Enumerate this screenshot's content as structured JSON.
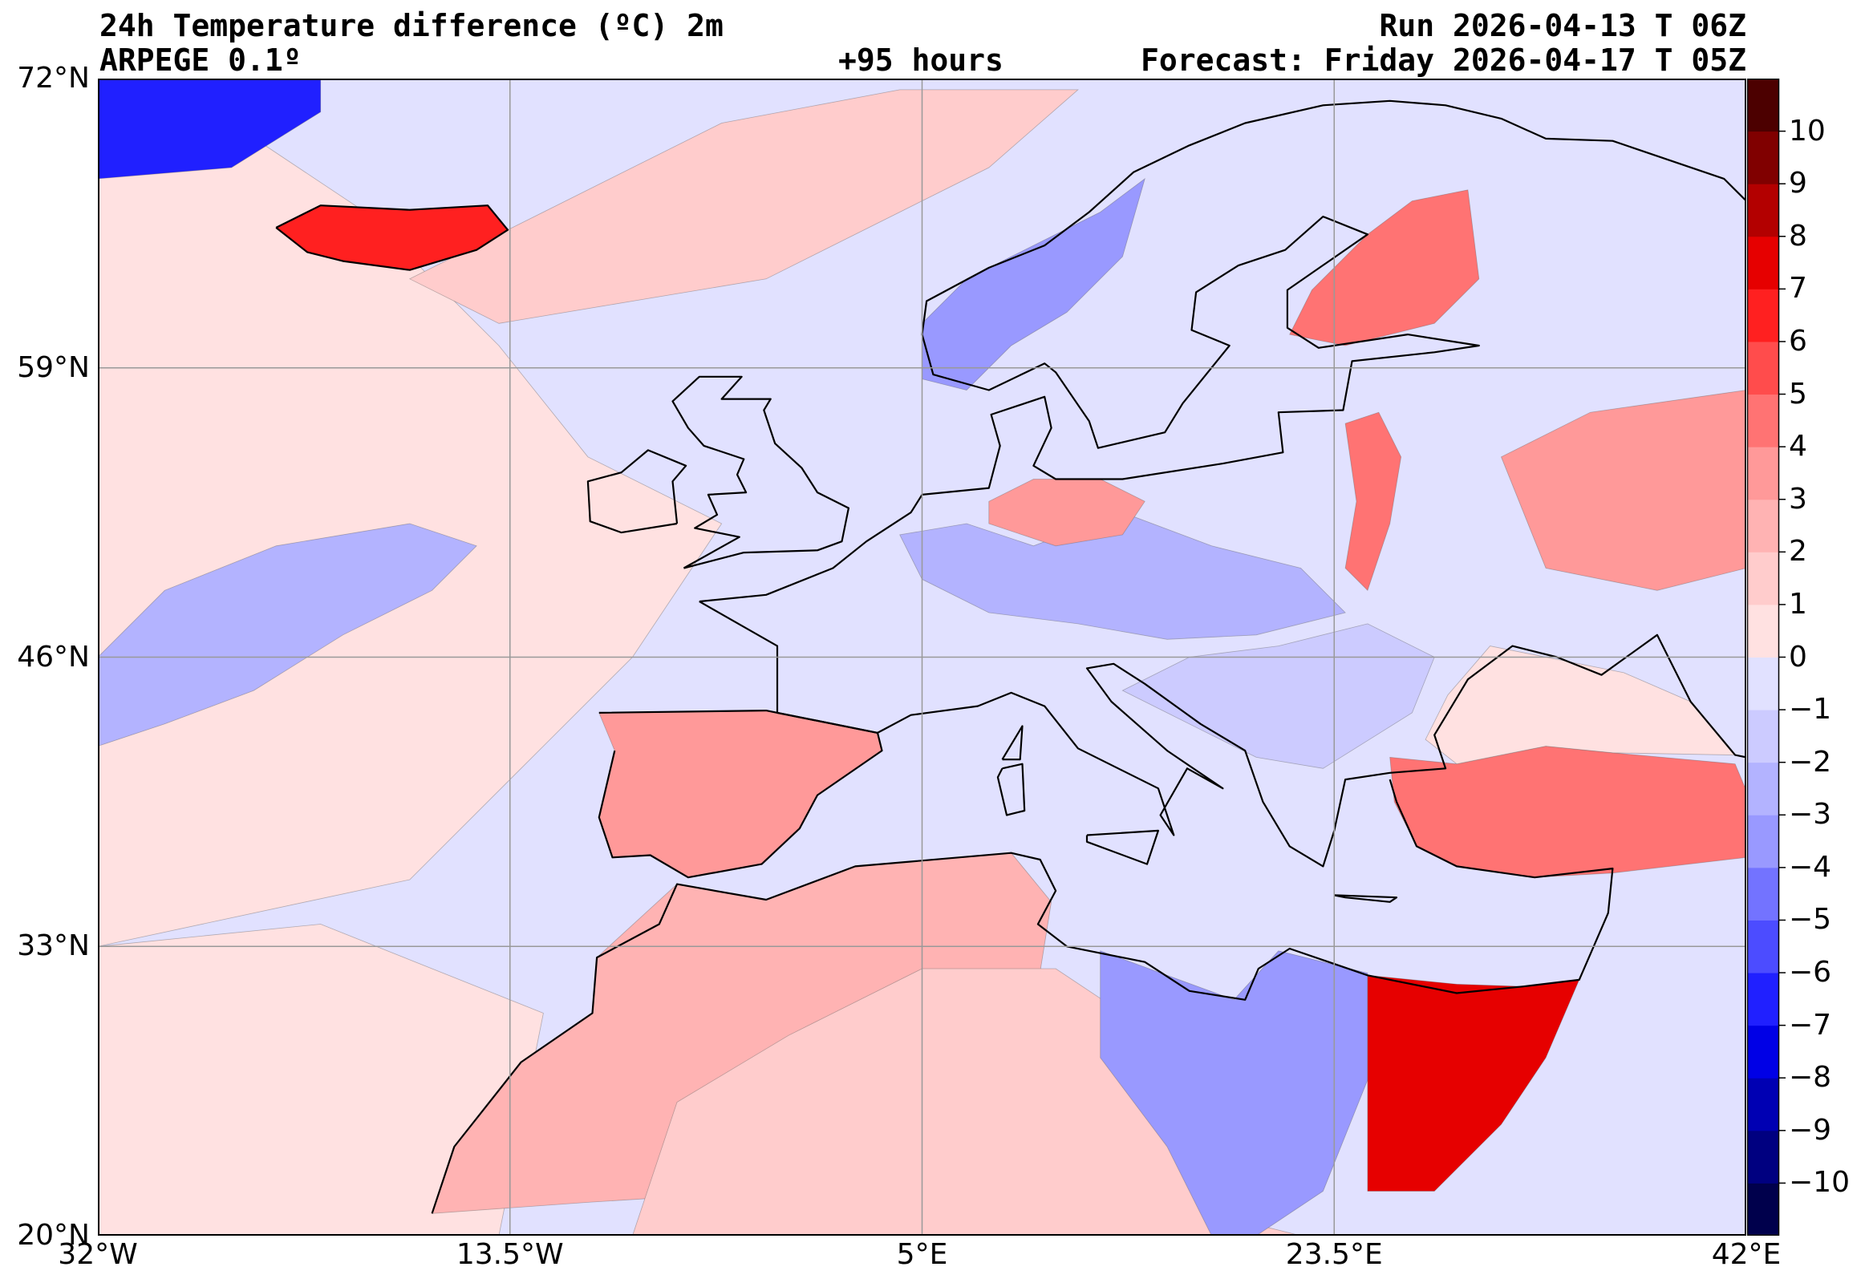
{
  "header": {
    "title_left_1": "24h Temperature difference (ºC) 2m",
    "title_left_2": "ARPEGE 0.1º",
    "lead_time": "+95 hours",
    "run": "Run 2026-04-13 T 06Z",
    "forecast": "Forecast: Friday 2026-04-17 T 05Z"
  },
  "map": {
    "lat_range": [
      20,
      72
    ],
    "lon_range": [
      -32,
      42
    ],
    "lat_ticks": [
      {
        "value": 72,
        "label": "72°N"
      },
      {
        "value": 59,
        "label": "59°N"
      },
      {
        "value": 46,
        "label": "46°N"
      },
      {
        "value": 33,
        "label": "33°N"
      },
      {
        "value": 20,
        "label": "20°N"
      }
    ],
    "lon_ticks": [
      {
        "value": -32,
        "label": "32°W"
      },
      {
        "value": -13.5,
        "label": "13.5°W"
      },
      {
        "value": 5,
        "label": "5°E"
      },
      {
        "value": 23.5,
        "label": "23.5°E"
      },
      {
        "value": 42,
        "label": "42°E"
      }
    ],
    "regions": [
      {
        "name": "sea-base",
        "value": -0.5
      },
      {
        "name": "atlantic-southwest",
        "value": 0.5
      },
      {
        "name": "atlantic-cold-band",
        "value": -2.5
      },
      {
        "name": "north-sea-warm",
        "value": 1.5
      },
      {
        "name": "iberia",
        "value": 3.5
      },
      {
        "name": "north-africa-west",
        "value": 2.5
      },
      {
        "name": "sahara-central",
        "value": 1.5
      },
      {
        "name": "libya-cold",
        "value": -3.5
      },
      {
        "name": "egypt-hot",
        "value": 7.5
      },
      {
        "name": "turkey",
        "value": 4.5
      },
      {
        "name": "finland",
        "value": 4.5
      },
      {
        "name": "norway-cold",
        "value": -3.5
      },
      {
        "name": "central-europe-cold",
        "value": -2.5
      },
      {
        "name": "germany-warm",
        "value": 3.5
      },
      {
        "name": "baltic-warm-strip",
        "value": 4.5
      },
      {
        "name": "iceland",
        "value": 6.5
      },
      {
        "name": "greenland-cold",
        "value": -6.5
      },
      {
        "name": "black-sea",
        "value": 0.5
      },
      {
        "name": "russia-west",
        "value": 3.5
      },
      {
        "name": "eastern-europe-mixed",
        "value": -1.5
      }
    ]
  },
  "colorbar": {
    "min": -11,
    "max": 11,
    "step": 1,
    "colors": [
      "#00004c",
      "#000080",
      "#0000b3",
      "#0000e6",
      "#2020ff",
      "#4c4cff",
      "#7373ff",
      "#9999ff",
      "#b3b3ff",
      "#cccbff",
      "#e1e1ff",
      "#ffe1e1",
      "#ffcccc",
      "#ffb3b3",
      "#ff9999",
      "#ff7373",
      "#ff4c4c",
      "#ff2020",
      "#e60000",
      "#b30000",
      "#800000",
      "#4c0000"
    ],
    "tick_labels": [
      "−10",
      "−9",
      "−8",
      "−7",
      "−6",
      "−5",
      "−4",
      "−3",
      "−2",
      "−1",
      "0",
      "1",
      "2",
      "3",
      "4",
      "5",
      "6",
      "7",
      "8",
      "9",
      "10"
    ]
  }
}
